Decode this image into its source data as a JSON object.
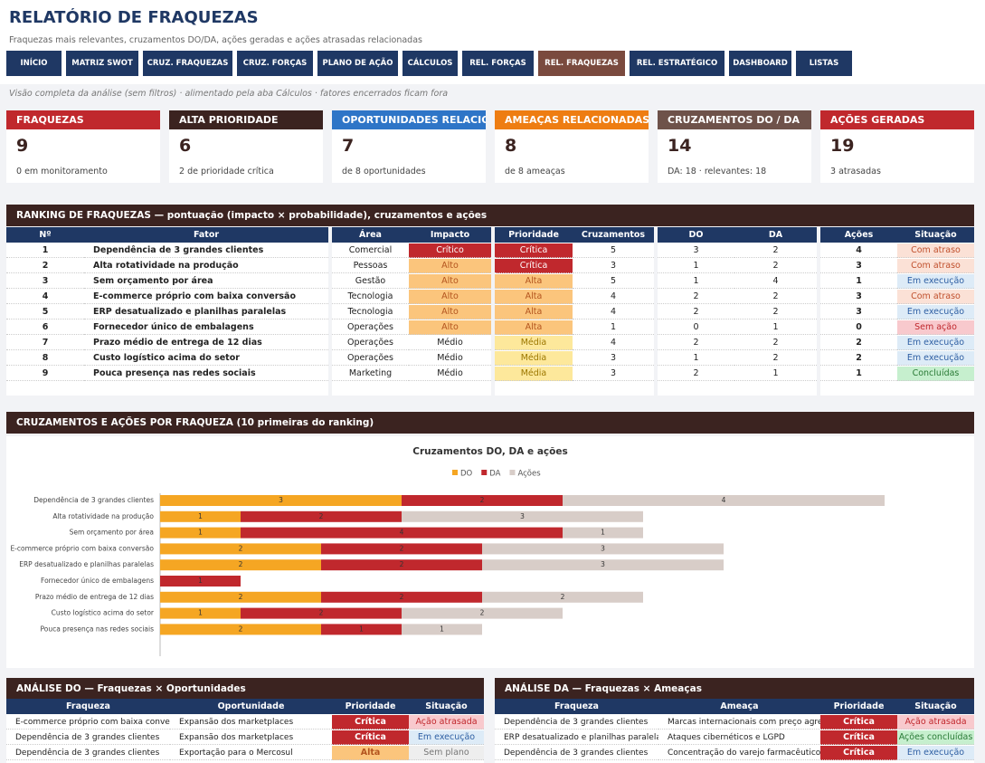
{
  "header": {
    "title": "RELATÓRIO DE FRAQUEZAS",
    "subtitle": "Fraquezas mais relevantes, cruzamentos DO/DA, ações geradas e ações atrasadas relacionadas"
  },
  "nav": [
    "INÍCIO",
    "MATRIZ SWOT",
    "CRUZ. FRAQUEZAS",
    "CRUZ. FORÇAS",
    "PLANO DE AÇÃO",
    "CÁLCULOS",
    "REL. FORÇAS",
    "REL. FRAQUEZAS",
    "REL. ESTRATÉGICO",
    "DASHBOARD",
    "LISTAS"
  ],
  "nav_active": 7,
  "note": "Visão completa da análise (sem filtros) · alimentado pela aba Cálculos · fatores encerrados ficam fora",
  "kpis": [
    {
      "label": "FRAQUEZAS",
      "value": 9,
      "detail": "0 em monitoramento",
      "color": "#c0282d"
    },
    {
      "label": "ALTA PRIORIDADE",
      "value": 6,
      "detail": "2 de prioridade crítica",
      "color": "#3b2320"
    },
    {
      "label": "OPORTUNIDADES RELACIONADAS",
      "value": 7,
      "detail": "de 8 oportunidades",
      "color": "#2e75c7"
    },
    {
      "label": "AMEAÇAS RELACIONADAS",
      "value": 8,
      "detail": "de 8 ameaças",
      "color": "#ee7d12"
    },
    {
      "label": "CRUZAMENTOS DO / DA",
      "value": 14,
      "detail": "DA: 18 · relevantes: 18",
      "color": "#6e524a"
    },
    {
      "label": "AÇÕES GERADAS",
      "value": 19,
      "detail": "3 atrasadas",
      "color": "#c0282d"
    }
  ],
  "ranking": {
    "title": "RANKING DE FRAQUEZAS — pontuação (impacto × probabilidade), cruzamentos e ações",
    "columns": [
      "Nº",
      "Fator",
      "Área",
      "Impacto",
      "Prioridade",
      "Cruzamentos",
      "DO",
      "DA",
      "Ações",
      "Situação"
    ],
    "rows": [
      [
        1,
        "Dependência de 3 grandes clientes",
        "Comercial",
        "Crítico",
        "Crítica",
        5,
        3,
        2,
        4,
        "Com atraso"
      ],
      [
        2,
        "Alta rotatividade na produção",
        "Pessoas",
        "Alto",
        "Crítica",
        3,
        1,
        2,
        3,
        "Com atraso"
      ],
      [
        3,
        "Sem orçamento por área",
        "Gestão",
        "Alto",
        "Alta",
        5,
        1,
        4,
        1,
        "Em execução"
      ],
      [
        4,
        "E-commerce próprio com baixa conversão",
        "Tecnologia",
        "Alto",
        "Alta",
        4,
        2,
        2,
        3,
        "Com atraso"
      ],
      [
        5,
        "ERP desatualizado e planilhas paralelas",
        "Tecnologia",
        "Alto",
        "Alta",
        4,
        2,
        2,
        3,
        "Em execução"
      ],
      [
        6,
        "Fornecedor único de embalagens",
        "Operações",
        "Alto",
        "Alta",
        1,
        0,
        1,
        0,
        "Sem ação"
      ],
      [
        7,
        "Prazo médio de entrega de 12 dias",
        "Operações",
        "Médio",
        "Média",
        4,
        2,
        2,
        2,
        "Em execução"
      ],
      [
        8,
        "Custo logístico acima do setor",
        "Operações",
        "Médio",
        "Média",
        3,
        1,
        2,
        2,
        "Em execução"
      ],
      [
        9,
        "Pouca presença nas redes sociais",
        "Marketing",
        "Médio",
        "Média",
        3,
        2,
        1,
        1,
        "Concluídas"
      ]
    ]
  },
  "chart_section_title": "CRUZAMENTOS E AÇÕES POR FRAQUEZA (10 primeiras do ranking)",
  "chart_data": {
    "type": "hbar_stacked",
    "title": "Cruzamentos DO, DA e ações",
    "categories": [
      "Dependência de 3 grandes clientes",
      "Alta rotatividade na produção",
      "Sem orçamento por área",
      "E-commerce próprio com baixa conversão",
      "ERP desatualizado e planilhas paralelas",
      "Fornecedor único de embalagens",
      "Prazo médio de entrega de 12 dias",
      "Custo logístico acima do setor",
      "Pouca presença nas redes sociais"
    ],
    "series": [
      {
        "name": "DO",
        "color": "#f5a623",
        "values": [
          3,
          1,
          1,
          2,
          2,
          0,
          2,
          1,
          2
        ]
      },
      {
        "name": "DA",
        "color": "#c0282d",
        "values": [
          2,
          2,
          4,
          2,
          2,
          1,
          2,
          2,
          1
        ]
      },
      {
        "name": "Ações",
        "color": "#d8cdc8",
        "values": [
          4,
          3,
          1,
          3,
          3,
          0,
          2,
          2,
          1
        ]
      }
    ],
    "xlim": [
      0,
      10
    ],
    "legend": "top"
  },
  "analysis": [
    {
      "title": "ANÁLISE DO — Fraquezas × Oportunidades",
      "columns": [
        "Fraqueza",
        "Oportunidade",
        "Prioridade",
        "Situação"
      ],
      "rows": [
        [
          "E-commerce próprio com baixa conversão",
          "Expansão dos marketplaces",
          "Crítica",
          "Ação atrasada"
        ],
        [
          "Dependência de 3 grandes clientes",
          "Expansão dos marketplaces",
          "Crítica",
          "Em execução"
        ],
        [
          "Dependência de 3 grandes clientes",
          "Exportação para o Mercosul",
          "Alta",
          "Sem plano"
        ]
      ]
    },
    {
      "title": "ANÁLISE DA — Fraquezas × Ameaças",
      "columns": [
        "Fraqueza",
        "Ameaça",
        "Prioridade",
        "Situação"
      ],
      "rows": [
        [
          "Dependência de 3 grandes clientes",
          "Marcas internacionais com preço agressivo",
          "Crítica",
          "Ação atrasada"
        ],
        [
          "ERP desatualizado e planilhas paralelas",
          "Ataques cibernéticos e LGPD",
          "Crítica",
          "Ações concluídas"
        ],
        [
          "Dependência de 3 grandes clientes",
          "Concentração do varejo farmacêutico",
          "Crítica",
          "Em execução"
        ]
      ]
    }
  ],
  "badge_colors": {
    "Crítico": [
      "#c0282d",
      "#ffffff"
    ],
    "Crítica": [
      "#c0282d",
      "#ffffff"
    ],
    "Alto": [
      "#fbc57c",
      "#b3541e"
    ],
    "Alta": [
      "#fbc57c",
      "#b3541e"
    ],
    "Média": [
      "#fde89b",
      "#9c7700"
    ],
    "Com atraso": [
      "#fbe1d6",
      "#c0502d"
    ],
    "Em execução": [
      "#ddebf7",
      "#2e5fa3"
    ],
    "Sem ação": [
      "#f8c9cd",
      "#c0282d"
    ],
    "Concluídas": [
      "#c6efce",
      "#2a7a36"
    ],
    "Ação atrasada": [
      "#f8c9cd",
      "#c0282d"
    ],
    "Ações concluídas": [
      "#c6efce",
      "#2a7a36"
    ],
    "Sem plano": [
      "#eeeeee",
      "#777777"
    ]
  }
}
